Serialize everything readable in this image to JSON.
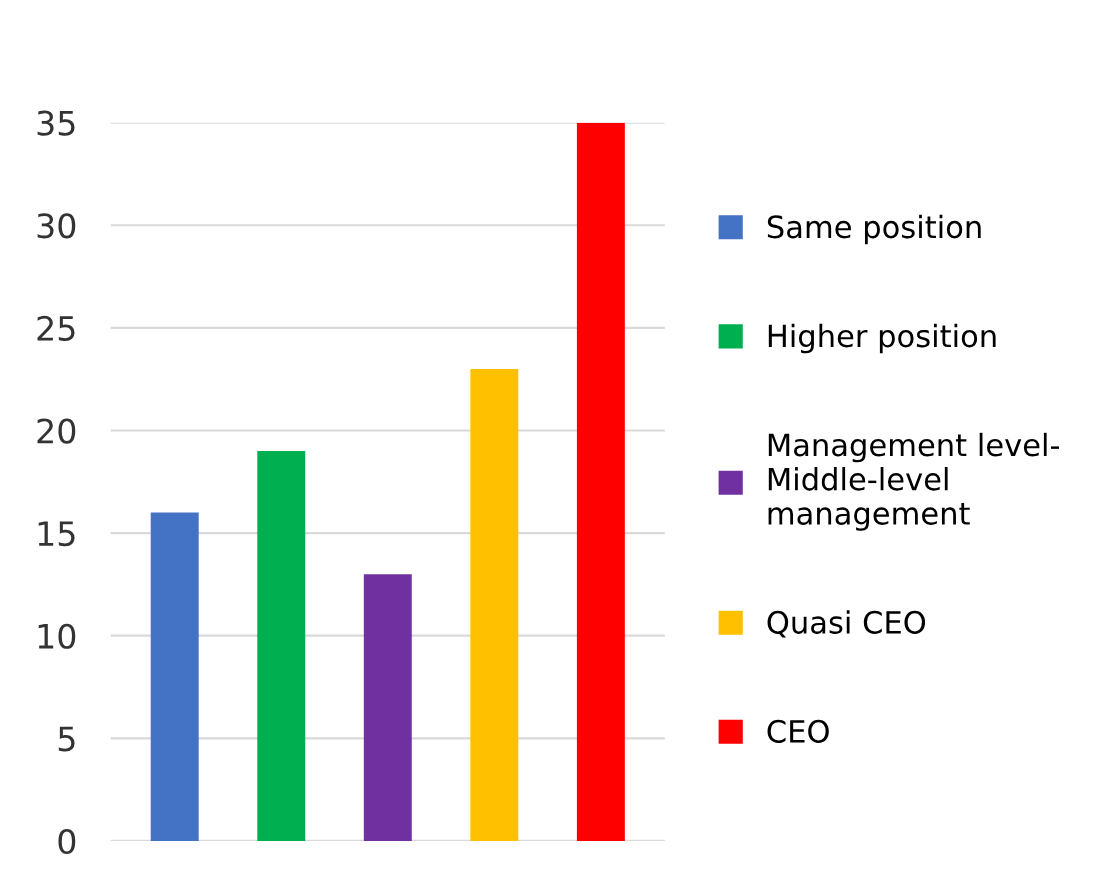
{
  "chart_data": {
    "type": "bar",
    "categories": [
      null,
      null,
      null,
      null,
      null
    ],
    "series": [
      {
        "name": "Same position",
        "color": "#4472c4",
        "values": [
          16,
          null,
          null,
          null,
          null
        ]
      },
      {
        "name": "Higher position",
        "color": "#00b050",
        "values": [
          null,
          19,
          null,
          null,
          null
        ]
      },
      {
        "name": "Management level- Middle-level management",
        "color": "#7030a0",
        "values": [
          null,
          null,
          13,
          null,
          null
        ]
      },
      {
        "name": "Quasi CEO",
        "color": "#ffc000",
        "values": [
          null,
          null,
          null,
          23,
          null
        ]
      },
      {
        "name": "CEO",
        "color": "#ff0000",
        "values": [
          null,
          null,
          null,
          null,
          35
        ]
      }
    ],
    "ylim": [
      0,
      35
    ],
    "yticks": [
      0,
      5,
      10,
      15,
      20,
      25,
      30,
      35
    ],
    "grid": "y",
    "legend": "right"
  }
}
